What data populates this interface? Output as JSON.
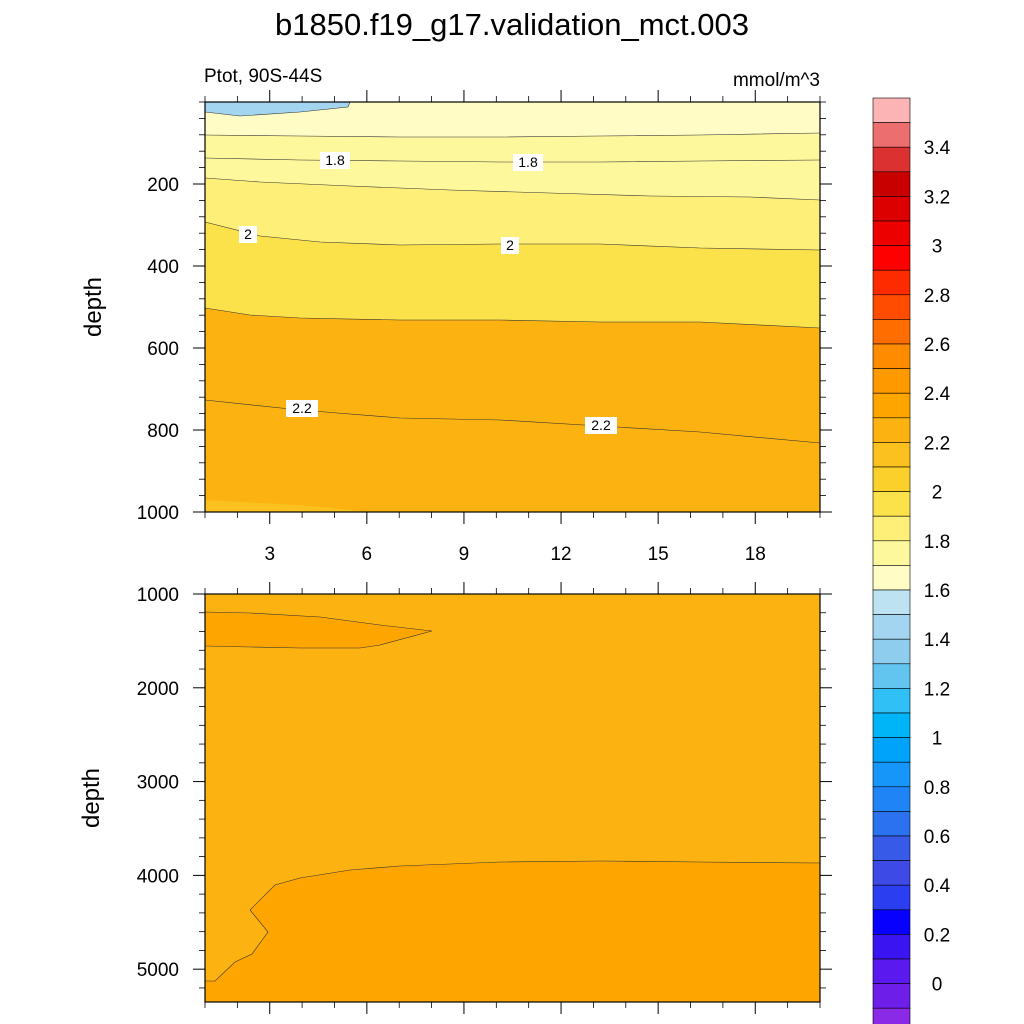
{
  "title": "b1850.f19_g17.validation_mct.003",
  "left_label": "Ptot, 90S-44S",
  "right_label": "mmol/m^3",
  "chart_data": [
    {
      "type": "contour",
      "panel": "upper",
      "ylabel": "depth",
      "xlim": [
        1,
        20
      ],
      "ylim": [
        1000,
        0
      ],
      "x_ticks": [
        3,
        6,
        9,
        12,
        15,
        18
      ],
      "y_ticks": [
        200,
        400,
        600,
        800,
        1000
      ],
      "contour_levels": [
        {
          "value": 1.6,
          "depth": [
            10,
            10
          ]
        },
        {
          "value": 1.7,
          "depth": [
            80,
            75
          ]
        },
        {
          "value": 1.8,
          "depth": [
            140,
            140
          ]
        },
        {
          "value": 1.9,
          "depth": [
            185,
            235
          ]
        },
        {
          "value": 2.0,
          "depth": [
            295,
            360
          ]
        },
        {
          "value": 2.1,
          "depth": [
            500,
            550
          ]
        },
        {
          "value": 2.2,
          "depth": [
            730,
            835
          ]
        }
      ],
      "contour_labels": [
        {
          "text": "1.8",
          "x": 4.5,
          "depth": 145
        },
        {
          "text": "1.8",
          "x": 10.5,
          "depth": 148
        },
        {
          "text": "2",
          "x": 2.8,
          "depth": 320
        },
        {
          "text": "2",
          "x": 10.8,
          "depth": 358
        },
        {
          "text": "2.2",
          "x": 4.8,
          "depth": 750
        },
        {
          "text": "2.2",
          "x": 14.0,
          "depth": 790
        }
      ]
    },
    {
      "type": "contour",
      "panel": "lower",
      "ylabel": "depth",
      "xlim": [
        1,
        20
      ],
      "ylim": [
        5350,
        1000
      ],
      "x_ticks": [
        3,
        6,
        9,
        12,
        15,
        18
      ],
      "y_ticks": [
        1000,
        2000,
        3000,
        4000,
        5000
      ],
      "contour_levels": [
        {
          "value": 2.3,
          "note": "background"
        },
        {
          "value": 2.4,
          "note": "lens 1200-1580 near x 1-8; deep layer below ~3900"
        }
      ]
    }
  ],
  "colorbar": {
    "labels": [
      "3.4",
      "3.2",
      "3",
      "2.8",
      "2.6",
      "2.4",
      "2.2",
      "2",
      "1.8",
      "1.6",
      "1.4",
      "1.2",
      "1",
      "0.8",
      "0.6",
      "0.4",
      "0.2",
      "0"
    ],
    "colors": [
      "#fcb4b4",
      "#ec6e6e",
      "#dc3131",
      "#c80000",
      "#dc0000",
      "#ec0000",
      "#ff0000",
      "#ff2b00",
      "#ff4c00",
      "#ff6c00",
      "#ff8c00",
      "#ff9900",
      "#ffa500",
      "#fcb311",
      "#fbc11e",
      "#fbd02a",
      "#fce24a",
      "#fdef78",
      "#fef89c",
      "#fffcc6",
      "#bde2f2",
      "#a3d4f0",
      "#8ecdee",
      "#62c5f0",
      "#30c0f5",
      "#00b4f8",
      "#00a3fa",
      "#1596f8",
      "#1f85f6",
      "#2b72f0",
      "#375be8",
      "#3d4ae6",
      "#2b3ff0",
      "#0800ff",
      "#3b14f2",
      "#5a19ee",
      "#6d1ee8",
      "#8a29e6"
    ]
  }
}
